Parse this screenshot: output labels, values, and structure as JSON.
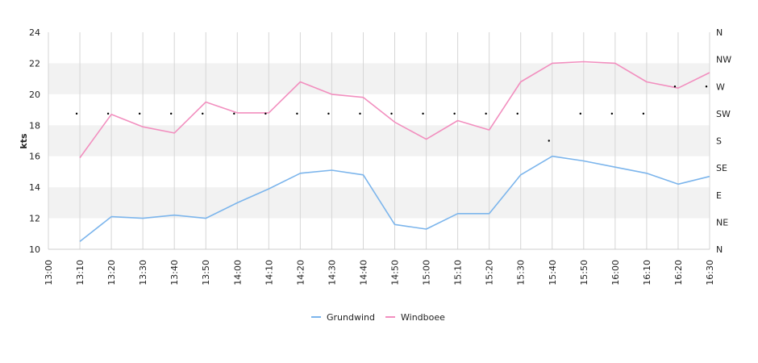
{
  "chart_data": {
    "type": "line",
    "x": [
      "13:00",
      "13:10",
      "13:20",
      "13:30",
      "13:40",
      "13:50",
      "14:00",
      "14:10",
      "14:20",
      "14:30",
      "14:40",
      "14:50",
      "15:00",
      "15:10",
      "15:20",
      "15:30",
      "15:40",
      "15:50",
      "16:00",
      "16:10",
      "16:20",
      "16:30"
    ],
    "ylabel": "kts",
    "ylim": [
      10,
      24
    ],
    "yticks": [
      "10",
      "12",
      "14",
      "16",
      "18",
      "20",
      "22",
      "24"
    ],
    "y2ticks": [
      "N",
      "NE",
      "E",
      "SE",
      "S",
      "SW",
      "W",
      "NW",
      "N"
    ],
    "series": [
      {
        "name": "Grundwind",
        "color": "#7cb5ec",
        "values": [
          null,
          10.5,
          12.1,
          12.0,
          12.2,
          12.0,
          13.0,
          13.9,
          14.9,
          15.1,
          14.8,
          11.6,
          11.3,
          12.3,
          12.3,
          14.8,
          16.0,
          15.7,
          15.3,
          14.9,
          14.2,
          14.7
        ]
      },
      {
        "name": "Windboee",
        "color": "#f28fbf",
        "values": [
          null,
          15.9,
          18.7,
          17.9,
          17.5,
          19.5,
          18.8,
          18.8,
          20.8,
          20.0,
          19.8,
          18.2,
          17.1,
          18.3,
          17.7,
          20.8,
          22.0,
          22.1,
          22.0,
          20.8,
          20.4,
          21.4
        ]
      }
    ],
    "direction_points": [
      {
        "x": "13:10",
        "dir": "SW"
      },
      {
        "x": "13:20",
        "dir": "SW"
      },
      {
        "x": "13:30",
        "dir": "SW"
      },
      {
        "x": "13:40",
        "dir": "SW"
      },
      {
        "x": "13:50",
        "dir": "SW"
      },
      {
        "x": "14:00",
        "dir": "SW"
      },
      {
        "x": "14:10",
        "dir": "SW"
      },
      {
        "x": "14:20",
        "dir": "SW"
      },
      {
        "x": "14:30",
        "dir": "SW"
      },
      {
        "x": "14:40",
        "dir": "SW"
      },
      {
        "x": "14:50",
        "dir": "SW"
      },
      {
        "x": "15:00",
        "dir": "SW"
      },
      {
        "x": "15:10",
        "dir": "SW"
      },
      {
        "x": "15:20",
        "dir": "SW"
      },
      {
        "x": "15:30",
        "dir": "SW"
      },
      {
        "x": "15:40",
        "dir": "S"
      },
      {
        "x": "15:50",
        "dir": "SW"
      },
      {
        "x": "16:00",
        "dir": "SW"
      },
      {
        "x": "16:10",
        "dir": "SW"
      },
      {
        "x": "16:20",
        "dir": "W"
      },
      {
        "x": "16:30",
        "dir": "W"
      }
    ],
    "legend_position": "bottom-center",
    "grid": true,
    "colors": {
      "band": "#f2f2f2",
      "grid": "#d6d6d6",
      "dot": "#000000"
    }
  }
}
